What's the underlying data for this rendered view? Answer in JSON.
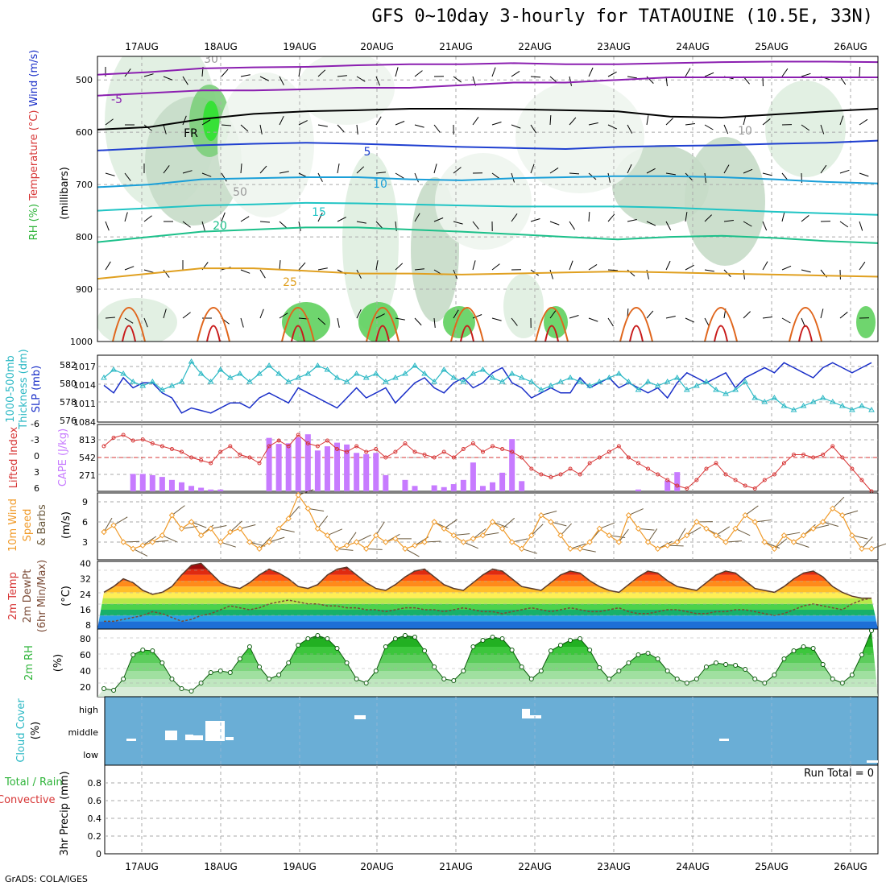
{
  "title": "GFS 0~10day 3-hourly for TATAOUINE (10.5E, 33N)",
  "footer": "GrADS: COLA/IGES",
  "days": [
    "17AUG",
    "18AUG",
    "19AUG",
    "20AUG",
    "21AUG",
    "22AUG",
    "23AUG",
    "24AUG",
    "25AUG",
    "26AUG"
  ],
  "colors": {
    "rh_green": "#2fb43a",
    "slp_line": "#1a2fc8",
    "thickness_line": "#2bb8c4",
    "cape_bar": "#c77bff",
    "lifted_line": "#d73535",
    "wind_line": "#f09a28",
    "barb": "#6b5a3e",
    "cloud_bg": "#6aaed6",
    "rh2m_fill": "#3cc63c",
    "dewpt": "#7a4a35"
  },
  "chart_data": [
    {
      "name": "upper_air",
      "type": "heatmap",
      "yticks": [
        "500",
        "600",
        "700",
        "800",
        "900",
        "1000"
      ],
      "ylabel_parts": [
        "RH (%)",
        "Temperature (°C)",
        "Wind (m/s)"
      ],
      "ylabel_units": "(millibars)",
      "isotherms": [
        {
          "label": "-5",
          "p": [
            530,
            525,
            520,
            520,
            518,
            515,
            515,
            510,
            505,
            505,
            500,
            495,
            495,
            495,
            495,
            495
          ],
          "color": "#8b1fb0"
        },
        {
          "label": "-5",
          "p": [
            490,
            485,
            478,
            476,
            475,
            472,
            470,
            470,
            468,
            470,
            470,
            468,
            466,
            465,
            465,
            466
          ],
          "color": "#8b1fb0"
        },
        {
          "label": "FR",
          "p": [
            595,
            590,
            575,
            565,
            560,
            558,
            555,
            555,
            556,
            558,
            560,
            570,
            572,
            566,
            560,
            555
          ],
          "color": "#000000"
        },
        {
          "label": "5",
          "p": [
            635,
            630,
            625,
            622,
            620,
            622,
            625,
            628,
            630,
            632,
            628,
            626,
            625,
            622,
            620,
            616
          ],
          "color": "#1f3fd0"
        },
        {
          "label": "10",
          "p": [
            705,
            700,
            690,
            688,
            686,
            686,
            690,
            692,
            688,
            686,
            684,
            684,
            686,
            690,
            695,
            698
          ],
          "color": "#1a9fd8"
        },
        {
          "label": "15",
          "p": [
            750,
            745,
            740,
            738,
            735,
            736,
            738,
            740,
            742,
            742,
            742,
            744,
            748,
            752,
            755,
            758
          ],
          "color": "#20c4c4"
        },
        {
          "label": "20",
          "p": [
            810,
            800,
            790,
            786,
            782,
            782,
            786,
            790,
            795,
            800,
            805,
            800,
            798,
            802,
            808,
            812
          ],
          "color": "#1cc08a"
        },
        {
          "label": "25",
          "p": [
            880,
            870,
            860,
            860,
            865,
            870,
            870,
            872,
            870,
            868,
            866,
            868,
            870,
            872,
            874,
            876
          ],
          "color": "#e0a020"
        }
      ],
      "contour_labels": [
        "30",
        "50",
        "10",
        "-5",
        "FR",
        "5",
        "10",
        "15",
        "20",
        "25"
      ]
    },
    {
      "name": "slp_thickness",
      "type": "line",
      "ylabel_left": [
        "1000-500mb",
        "Thickness (dm)"
      ],
      "ylabel_right": "SLP (mb)",
      "left_ticks": [
        "582",
        "580",
        "578",
        "576"
      ],
      "right_ticks": [
        "1017",
        "1014",
        "1011",
        "1084"
      ],
      "series": [
        {
          "name": "SLP (mb)",
          "values": [
            1013.5,
            1012,
            1015,
            1013,
            1014,
            1014,
            1012,
            1011,
            1008,
            1009,
            1008.5,
            1008,
            1009,
            1010,
            1010,
            1009,
            1011,
            1012,
            1011,
            1010,
            1013,
            1012,
            1011,
            1010,
            1009,
            1011,
            1013,
            1011,
            1012,
            1013,
            1010,
            1012,
            1014,
            1015,
            1013,
            1012,
            1014,
            1015,
            1013,
            1014,
            1016,
            1017,
            1014,
            1013,
            1011,
            1012,
            1013,
            1012,
            1012,
            1015,
            1013,
            1014,
            1015,
            1013,
            1014,
            1013,
            1012,
            1013,
            1011,
            1014,
            1016,
            1015,
            1014,
            1015,
            1016,
            1013,
            1015,
            1016,
            1017,
            1016,
            1018,
            1017,
            1016,
            1015,
            1017,
            1018,
            1017,
            1016,
            1017,
            1018
          ]
        },
        {
          "name": "Thickness (dm)",
          "values": [
            580.5,
            581.5,
            581,
            580,
            579.5,
            580,
            579,
            579.5,
            580,
            582.5,
            581,
            580,
            581.5,
            580.5,
            581,
            580,
            581,
            582,
            581,
            580,
            580.5,
            581,
            582,
            581.5,
            580.5,
            580,
            581,
            580.5,
            581,
            580,
            580.5,
            581,
            582,
            581,
            580,
            581.5,
            580.5,
            580,
            581,
            581.5,
            580.5,
            580,
            581,
            580.5,
            580,
            579,
            579.5,
            580,
            580.5,
            580,
            579.5,
            580,
            580.5,
            581,
            580,
            579,
            580,
            579.5,
            580,
            580.5,
            579,
            579.5,
            580,
            579,
            578.5,
            579,
            580,
            578,
            577.5,
            578,
            577,
            576.5,
            577,
            577.5,
            578,
            577.5,
            577,
            576.5,
            577,
            576.5
          ]
        }
      ]
    },
    {
      "name": "cape_li",
      "type": "bar",
      "ylabel_left": "Lifted Index",
      "ylabel_right": "CAPE (J/kg)",
      "left_ticks": [
        "-6",
        "-3",
        "0",
        "3",
        "6"
      ],
      "right_ticks": [
        "813",
        "542",
        "271"
      ],
      "cape": [
        0,
        0,
        0,
        290,
        290,
        270,
        240,
        190,
        150,
        90,
        60,
        30,
        30,
        0,
        0,
        0,
        0,
        890,
        790,
        800,
        900,
        950,
        680,
        750,
        810,
        780,
        640,
        620,
        640,
        270,
        0,
        190,
        90,
        0,
        100,
        70,
        120,
        190,
        480,
        90,
        150,
        310,
        870,
        170,
        0,
        0,
        0,
        0,
        0,
        0,
        0,
        0,
        0,
        0,
        0,
        30,
        0,
        0,
        180,
        320,
        0,
        0,
        0,
        0,
        0,
        0,
        0,
        0,
        0,
        0,
        0,
        0,
        0,
        0,
        0,
        0,
        0,
        0,
        0,
        0,
        0,
        0,
        0,
        0,
        0,
        0,
        0,
        0,
        0,
        0,
        40,
        40,
        0,
        0,
        60,
        0,
        0,
        120,
        0,
        0,
        0,
        0,
        0,
        0,
        0,
        0,
        0,
        0,
        0,
        0,
        0,
        0,
        0,
        0,
        0,
        0,
        0,
        0,
        0,
        0,
        0,
        0,
        0,
        0,
        0,
        0,
        0,
        0,
        0,
        0,
        0,
        0,
        0,
        0,
        0,
        0,
        0,
        0,
        0,
        0,
        0,
        0,
        0,
        0,
        0,
        0,
        0,
        0,
        0,
        0,
        0,
        0
      ],
      "li": [
        -2,
        -3.5,
        -4,
        -3,
        -3.2,
        -2.5,
        -2,
        -1.5,
        -1,
        0,
        0.5,
        1,
        -1,
        -2,
        -0.5,
        0,
        1,
        -2,
        -3,
        -2,
        -4,
        -2.5,
        -2,
        -3,
        -1.5,
        -1,
        -2,
        -1,
        -1.5,
        0,
        -1,
        -2.5,
        -1,
        -0.5,
        0,
        -1,
        0,
        -1.5,
        -2.5,
        -1,
        -2,
        -1.5,
        -1,
        0,
        2,
        3,
        3.5,
        3,
        2,
        3,
        1,
        0,
        -1,
        -2,
        0,
        1,
        2,
        3,
        4,
        5,
        5.5,
        4,
        2,
        1,
        3,
        4,
        5,
        5.5,
        4,
        3,
        1,
        -0.5,
        -0.5,
        0,
        -0.5,
        -2,
        0,
        2,
        4,
        6
      ]
    },
    {
      "name": "wind10m",
      "type": "line",
      "ylabel_left": [
        "10m Wind",
        "Speed",
        "& Barbs"
      ],
      "ylabel_units": "(m/s)",
      "ticks": [
        "9",
        "6",
        "3"
      ],
      "values": [
        4.5,
        5.5,
        3,
        2,
        2.5,
        3,
        4,
        7,
        5,
        6,
        4,
        5,
        3,
        4.5,
        5,
        3,
        2,
        3,
        5,
        6.5,
        10,
        8,
        5,
        4,
        2,
        2.5,
        3,
        2,
        4,
        3,
        3.5,
        2,
        2.5,
        3,
        6,
        5,
        4,
        3,
        3.5,
        4,
        6,
        5,
        3,
        2,
        4,
        7,
        6,
        4,
        2,
        2,
        3,
        5,
        4,
        3,
        7,
        5,
        3,
        2,
        2.5,
        3,
        4,
        6,
        5,
        4,
        3,
        5,
        7,
        6,
        3,
        2,
        4,
        3,
        4,
        5,
        6,
        8,
        7,
        4,
        2,
        2
      ]
    },
    {
      "name": "temp2m",
      "type": "area",
      "ylabel_left": [
        "2m Temp",
        "2m DewPt",
        "(6hr Min/Max)"
      ],
      "ylabel_units": "(°C)",
      "ticks": [
        "40",
        "32",
        "24",
        "16",
        "8"
      ],
      "temp": [
        25,
        28,
        32,
        30,
        26,
        24,
        25,
        28,
        34,
        39,
        40,
        35,
        30,
        28,
        27,
        30,
        34,
        37,
        35,
        32,
        28,
        27,
        29,
        34,
        37,
        38,
        34,
        30,
        27,
        26,
        29,
        33,
        36,
        37,
        33,
        29,
        27,
        26,
        30,
        34,
        37,
        36,
        32,
        28,
        27,
        26,
        30,
        34,
        36,
        35,
        31,
        28,
        26,
        25,
        29,
        33,
        36,
        35,
        31,
        28,
        27,
        26,
        30,
        34,
        36,
        35,
        31,
        27,
        26,
        25,
        28,
        32,
        35,
        36,
        33,
        28,
        25,
        23,
        22,
        22
      ],
      "dewpt": [
        10,
        10,
        11,
        12,
        13,
        15,
        14,
        12,
        10,
        11,
        13,
        14,
        16,
        18,
        17,
        16,
        17,
        19,
        20,
        21,
        20,
        19,
        19,
        18,
        18,
        17,
        17,
        16,
        16,
        15,
        16,
        17,
        17,
        16,
        16,
        15,
        16,
        17,
        16,
        15,
        15,
        14,
        15,
        16,
        17,
        16,
        15,
        16,
        17,
        16,
        15,
        15,
        16,
        17,
        15,
        14,
        14,
        15,
        16,
        16,
        15,
        14,
        14,
        15,
        15,
        16,
        16,
        15,
        14,
        13,
        14,
        16,
        18,
        19,
        18,
        17,
        16,
        19,
        21,
        22
      ]
    },
    {
      "name": "rh2m",
      "type": "area",
      "ylabel_left": "2m RH",
      "ylabel_units": "(%)",
      "ticks": [
        "80",
        "60",
        "40",
        "20"
      ],
      "values": [
        18,
        16,
        30,
        60,
        66,
        65,
        50,
        30,
        18,
        15,
        25,
        38,
        40,
        38,
        55,
        70,
        45,
        30,
        35,
        50,
        72,
        80,
        84,
        80,
        68,
        50,
        30,
        25,
        40,
        70,
        80,
        84,
        82,
        65,
        45,
        30,
        28,
        40,
        70,
        78,
        82,
        80,
        66,
        45,
        30,
        40,
        65,
        72,
        78,
        80,
        66,
        44,
        30,
        40,
        50,
        60,
        62,
        55,
        40,
        30,
        25,
        30,
        45,
        50,
        48,
        47,
        42,
        30,
        25,
        35,
        55,
        65,
        70,
        68,
        48,
        30,
        25,
        35,
        60,
        90
      ]
    },
    {
      "name": "cloud",
      "type": "bar",
      "ylabel": [
        "Cloud Cover",
        "(%)"
      ],
      "levels": [
        "high",
        "middle",
        "low"
      ]
    },
    {
      "name": "precip",
      "type": "bar",
      "ylabel": [
        "3hr Precip (mm)",
        "Total / Rain",
        "Convective"
      ],
      "ticks": [
        "0.8",
        "0.6",
        "0.4",
        "0.2",
        "0"
      ],
      "ylim": [
        0,
        1
      ],
      "values": [],
      "run_total": "Run Total = 0"
    }
  ]
}
